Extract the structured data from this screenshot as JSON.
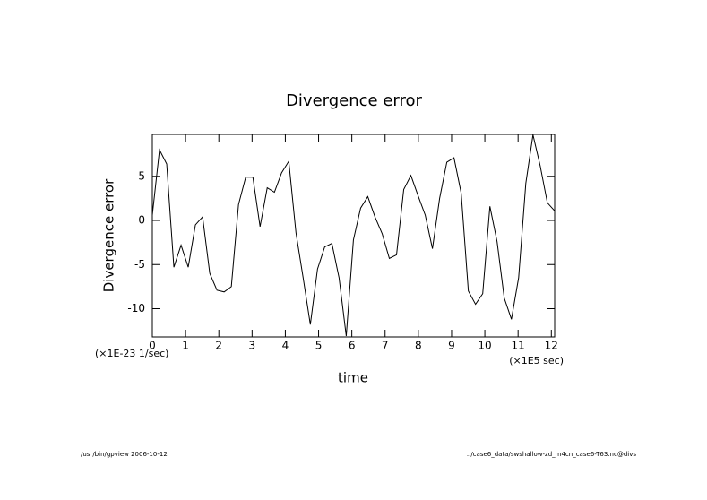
{
  "chart_data": {
    "type": "line",
    "title": "Divergence error",
    "ylabel": "Divergence error",
    "xlabel": "time",
    "yunit": "(×1E-23 1/sec)",
    "xunit": "(×1E5 sec)",
    "footer_left": "/usr/bin/gpview  2006-10-12",
    "footer_right": "../case6_data/swshallow-zd_m4cn_case6-T63.nc@divs",
    "x": [
      0,
      0.216,
      0.432,
      0.648,
      0.864,
      1.08,
      1.296,
      1.512,
      1.728,
      1.944,
      2.16,
      2.376,
      2.592,
      2.808,
      3.024,
      3.24,
      3.456,
      3.672,
      3.888,
      4.104,
      4.32,
      4.536,
      4.752,
      4.968,
      5.184,
      5.4,
      5.616,
      5.832,
      6.048,
      6.264,
      6.48,
      6.696,
      6.912,
      7.128,
      7.344,
      7.56,
      7.776,
      7.992,
      8.208,
      8.424,
      8.64,
      8.856,
      9.072,
      9.288,
      9.504,
      9.72,
      9.936,
      10.152,
      10.368,
      10.584,
      10.8,
      11.016,
      11.232,
      11.448,
      11.664,
      11.88,
      12.096
    ],
    "series": [
      {
        "color": "#000000",
        "values": [
          0.6,
          8.0,
          6.4,
          -5.3,
          -2.8,
          -5.3,
          -0.5,
          0.4,
          -6,
          -7.9,
          -8.1,
          -7.5,
          1.8,
          4.9,
          4.9,
          -0.7,
          3.7,
          3.2,
          5.4,
          6.7,
          -1.4,
          -6.5,
          -11.8,
          -5.5,
          -3.0,
          -2.6,
          -6.5,
          -13.1,
          -2.2,
          1.4,
          2.7,
          0.4,
          -1.5,
          -4.3,
          -3.9,
          3.5,
          5.1,
          2.8,
          0.6,
          -3.2,
          2.5,
          6.6,
          7.1,
          3.1,
          -8.0,
          -9.5,
          -8.3,
          1.6,
          -2.4,
          -8.8,
          -11.2,
          -6.5,
          4.2,
          9.7,
          6.2,
          2.0,
          1.1
        ]
      }
    ],
    "xlim": [
      0,
      12.1
    ],
    "ylim": [
      -13.2,
      9.75
    ],
    "xticks": [
      0,
      1,
      2,
      3,
      4,
      5,
      6,
      7,
      8,
      9,
      10,
      11,
      12
    ],
    "yticks": [
      5,
      0,
      -5,
      -10
    ]
  }
}
